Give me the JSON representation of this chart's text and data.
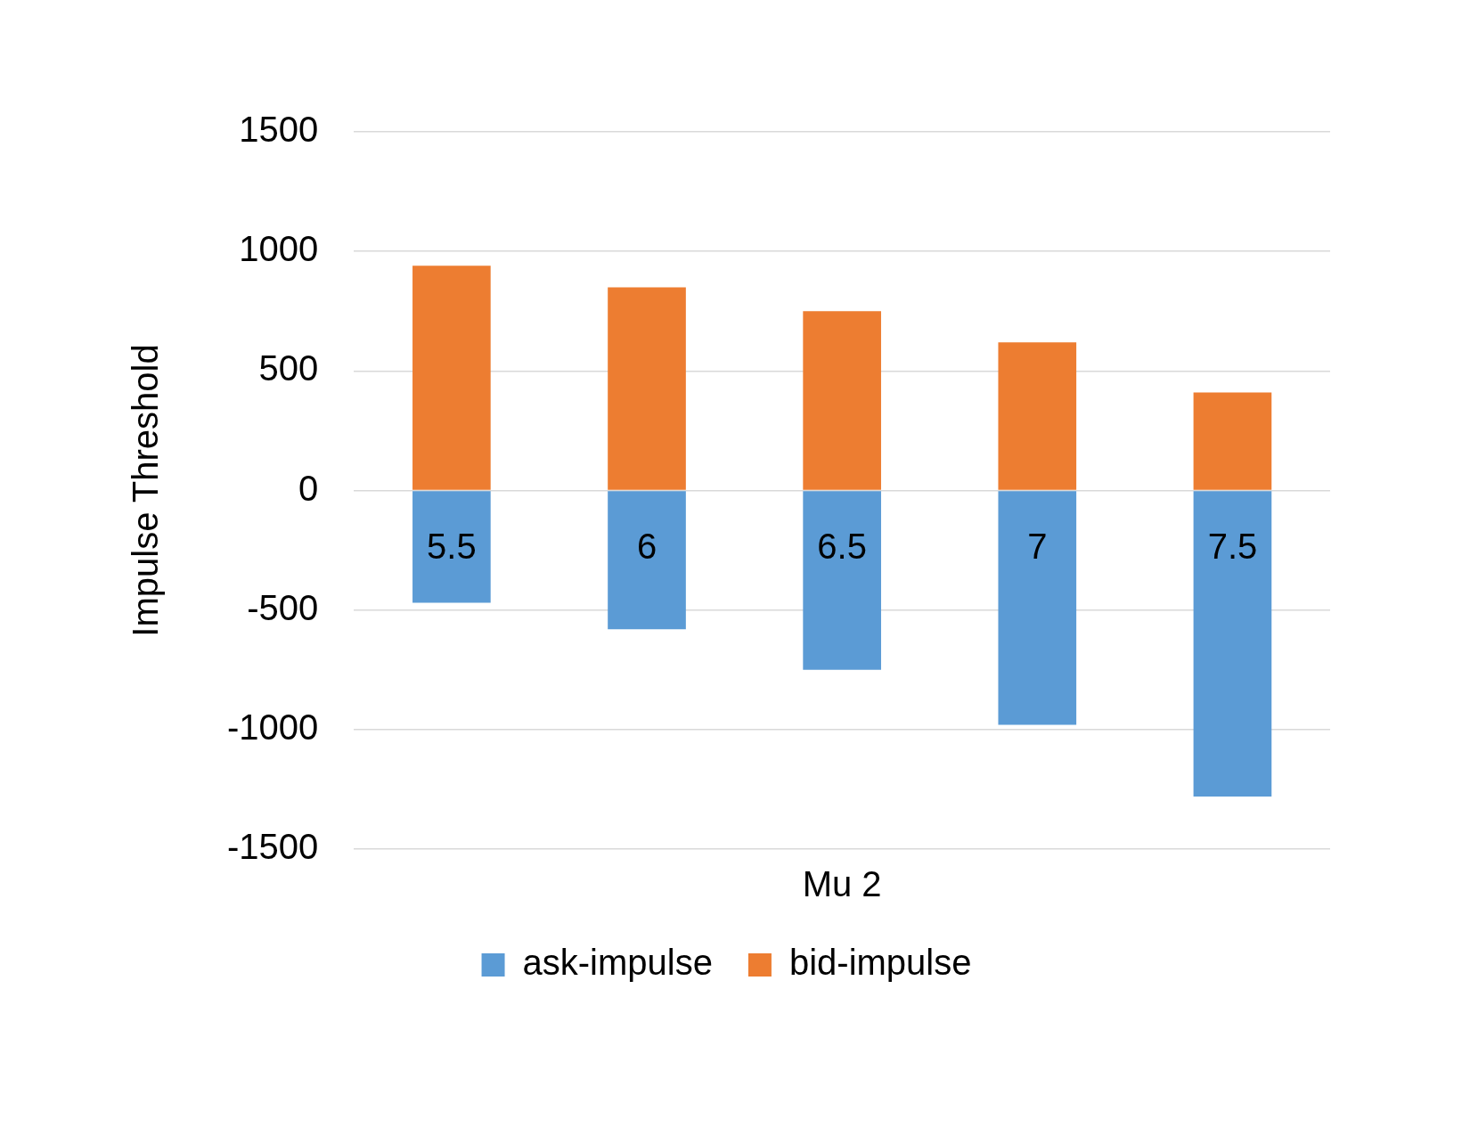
{
  "chart_data": {
    "type": "bar",
    "stacked": true,
    "xlabel": "Mu 2",
    "ylabel": "Impulse Threshold",
    "categories": [
      "5.5",
      "6",
      "6.5",
      "7",
      "7.5"
    ],
    "series": [
      {
        "name": "ask-impulse",
        "color": "#5b9bd5",
        "values": [
          -470,
          -580,
          -750,
          -980,
          -1280
        ]
      },
      {
        "name": "bid-impulse",
        "color": "#ed7d31",
        "values": [
          940,
          850,
          750,
          620,
          410
        ]
      }
    ],
    "ylim": [
      -1500,
      1500
    ],
    "yticks": [
      -1500,
      -1000,
      -500,
      0,
      500,
      1000,
      1500
    ],
    "grid": "y",
    "legend": "bottom"
  }
}
